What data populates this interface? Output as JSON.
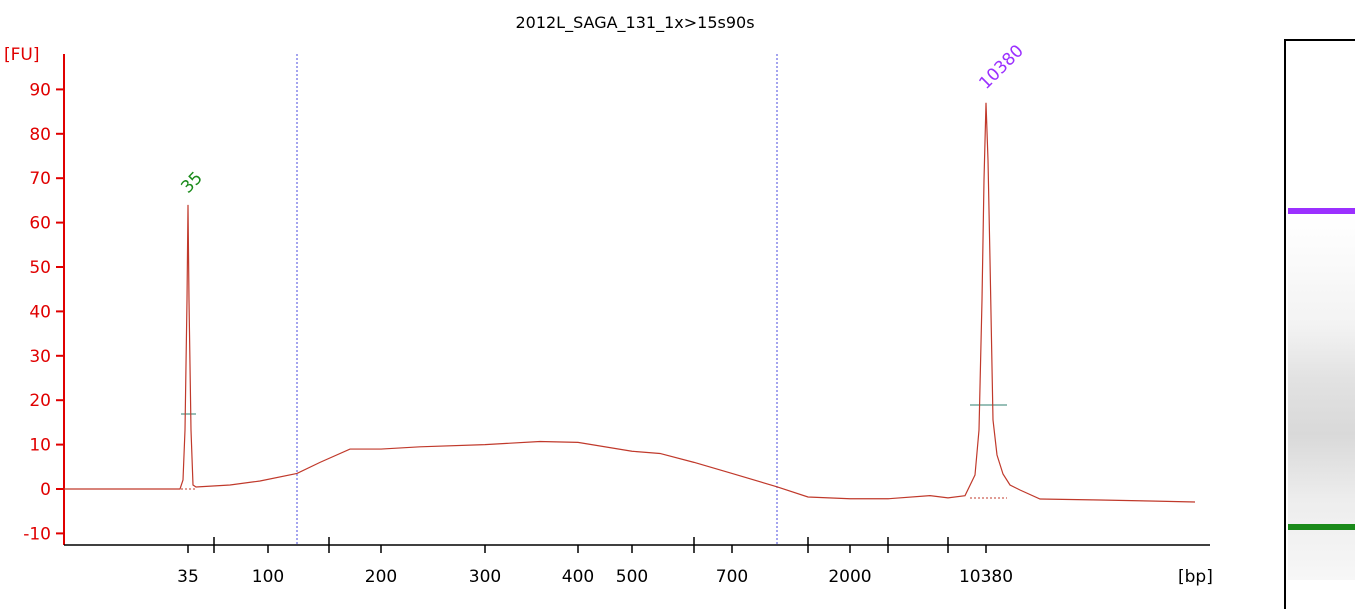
{
  "chart_data": {
    "type": "line",
    "title": "2012L_SAGA_131_1x>15s90s",
    "ylabel": "[FU]",
    "xlabel": "[bp]",
    "ylim": [
      -12,
      97
    ],
    "y_ticks": [
      -10,
      0,
      10,
      20,
      30,
      40,
      50,
      60,
      70,
      80,
      90
    ],
    "x_tick_labels": [
      "35",
      "100",
      "200",
      "300",
      "400",
      "500",
      "700",
      "2000",
      "10380"
    ],
    "x_unlabeled_ticks": 6,
    "region_markers": [
      "~120 bp",
      "~1000 bp"
    ],
    "peaks": [
      {
        "label": "35",
        "size_bp": 35,
        "height": 64,
        "color": "#1a8a1a"
      },
      {
        "label": "10380",
        "size_bp": 10380,
        "height": 87,
        "color": "#9b30ff"
      }
    ],
    "series": [
      {
        "color": "#c0392b",
        "description_points_bp": [
          "start",
          "35",
          "100",
          "200",
          "300",
          "400",
          "500",
          "700",
          "1000",
          "2000",
          "10380",
          "end"
        ],
        "values": [
          0,
          64,
          3,
          9,
          10,
          11,
          9,
          5,
          0,
          -2,
          87,
          -3
        ]
      }
    ]
  },
  "gel_lane": {
    "bands": [
      {
        "name": "upper marker",
        "color": "#9b30ff"
      },
      {
        "name": "lower marker",
        "color": "#1a8a1a"
      }
    ]
  }
}
